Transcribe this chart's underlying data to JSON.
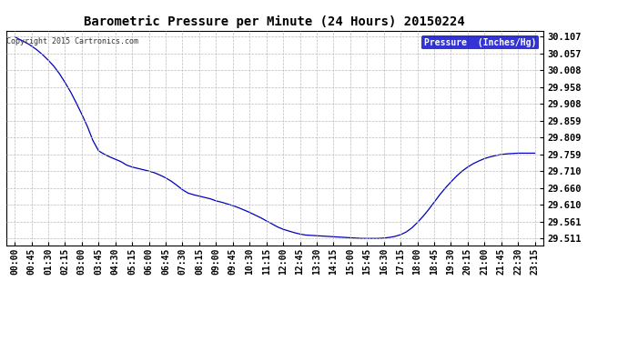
{
  "title": "Barometric Pressure per Minute (24 Hours) 20150224",
  "copyright_text": "Copyright 2015 Cartronics.com",
  "legend_text": "Pressure  (Inches/Hg)",
  "background_color": "#ffffff",
  "plot_bg_color": "#ffffff",
  "line_color": "#0000bb",
  "legend_bg_color": "#0000cc",
  "legend_text_color": "#ffffff",
  "grid_color": "#bbbbbb",
  "yticks": [
    29.511,
    29.561,
    29.61,
    29.66,
    29.71,
    29.759,
    29.809,
    29.859,
    29.908,
    29.958,
    30.008,
    30.057,
    30.107
  ],
  "ylim": [
    29.49,
    30.125
  ],
  "xtick_labels": [
    "00:00",
    "00:45",
    "01:30",
    "02:15",
    "03:00",
    "03:45",
    "04:30",
    "05:15",
    "06:00",
    "06:45",
    "07:30",
    "08:15",
    "09:00",
    "09:45",
    "10:30",
    "11:15",
    "12:00",
    "12:45",
    "13:30",
    "14:15",
    "15:00",
    "15:45",
    "16:30",
    "17:15",
    "18:00",
    "18:45",
    "19:30",
    "20:15",
    "21:00",
    "21:45",
    "22:30",
    "23:15"
  ],
  "pressure_data": [
    30.107,
    30.098,
    30.09,
    30.08,
    30.068,
    30.054,
    30.038,
    30.02,
    29.998,
    29.972,
    29.944,
    29.912,
    29.878,
    29.842,
    29.8,
    29.77,
    29.76,
    29.752,
    29.745,
    29.738,
    29.728,
    29.722,
    29.718,
    29.714,
    29.71,
    29.705,
    29.698,
    29.69,
    29.68,
    29.668,
    29.655,
    29.645,
    29.64,
    29.636,
    29.632,
    29.628,
    29.622,
    29.618,
    29.613,
    29.608,
    29.602,
    29.595,
    29.588,
    29.58,
    29.572,
    29.563,
    29.554,
    29.545,
    29.538,
    29.533,
    29.528,
    29.524,
    29.521,
    29.52,
    29.519,
    29.518,
    29.517,
    29.516,
    29.515,
    29.514,
    29.513,
    29.512,
    29.511,
    29.511,
    29.511,
    29.511,
    29.512,
    29.514,
    29.517,
    29.522,
    29.53,
    29.542,
    29.558,
    29.576,
    29.596,
    29.618,
    29.64,
    29.66,
    29.678,
    29.695,
    29.71,
    29.722,
    29.732,
    29.74,
    29.747,
    29.752,
    29.756,
    29.759,
    29.761,
    29.762,
    29.763,
    29.763,
    29.763,
    29.763
  ]
}
